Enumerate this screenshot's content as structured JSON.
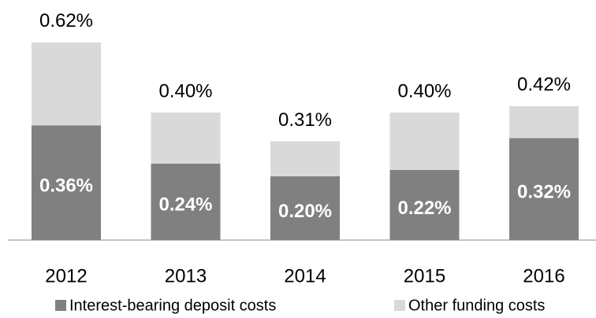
{
  "chart_data": {
    "type": "stacked_bar",
    "categories": [
      "2012",
      "2013",
      "2014",
      "2015",
      "2016"
    ],
    "series": [
      {
        "name": "Interest-bearing deposit costs",
        "color": "#808080",
        "values": [
          0.36,
          0.24,
          0.2,
          0.22,
          0.32
        ],
        "value_labels": [
          "0.36%",
          "0.24%",
          "0.20%",
          "0.22%",
          "0.32%"
        ]
      },
      {
        "name": "Other funding costs",
        "color": "#d9d9d9",
        "values": [
          0.26,
          0.16,
          0.11,
          0.18,
          0.1
        ]
      }
    ],
    "total_labels": [
      "0.62%",
      "0.40%",
      "0.31%",
      "0.40%",
      "0.42%"
    ]
  }
}
